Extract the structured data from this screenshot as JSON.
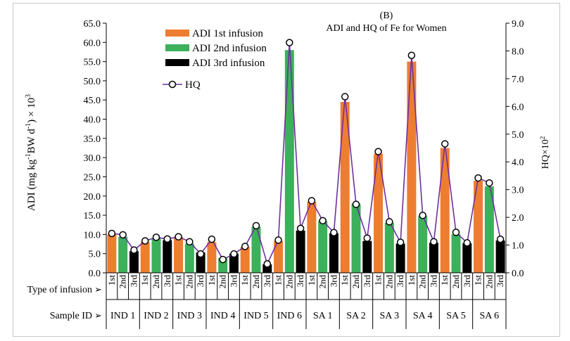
{
  "chart_data": {
    "type": "bar",
    "panel_label": "(B)",
    "title": "ADI and HQ of Fe for Women",
    "ylabel_parts": {
      "pre": "ADI (mg kg",
      "sup1": "-1",
      "mid": "BW d",
      "sup2": "-1",
      "post": ") × 10",
      "sup3": "3"
    },
    "y2label_parts": {
      "pre": "HQ×10",
      "sup": "2"
    },
    "ylim": [
      0,
      65
    ],
    "yticks": [
      "0.0",
      "5.0",
      "10.0",
      "15.0",
      "20.0",
      "25.0",
      "30.0",
      "35.0",
      "40.0",
      "45.0",
      "50.0",
      "55.0",
      "60.0",
      "65.0"
    ],
    "y2lim": [
      0,
      9
    ],
    "y2ticks": [
      "0.0",
      "1.0",
      "2.0",
      "3.0",
      "4.0",
      "5.0",
      "6.0",
      "7.0",
      "8.0",
      "9.0"
    ],
    "row_label_infusion": "Type of infusion",
    "row_label_sample": "Sample ID",
    "arrow_glyph": "➢",
    "infusion_types": [
      "1st",
      "2nd",
      "3rd"
    ],
    "samples": [
      "IND 1",
      "IND 2",
      "IND 3",
      "IND 4",
      "IND 5",
      "IND 6",
      "SA 1",
      "SA 2",
      "SA 3",
      "SA 4",
      "SA 5",
      "SA 6"
    ],
    "colors": {
      "1st": "#ED7D31",
      "2nd": "#3CB05A",
      "3rd": "#000000",
      "hq": "#7030A0"
    },
    "legend": {
      "placement": "top-left",
      "items": [
        "ADI 1st infusion",
        "ADI 2nd infusion",
        "ADI 3rd infusion",
        "HQ"
      ]
    },
    "series": [
      {
        "name": "ADI 1st infusion",
        "values": [
          10.0,
          8.0,
          9.4,
          8.0,
          6.7,
          8.3,
          18.5,
          44.5,
          31.0,
          55.0,
          32.5,
          24.0
        ]
      },
      {
        "name": "ADI 2nd infusion",
        "values": [
          9.4,
          9.0,
          7.6,
          3.8,
          12.0,
          58.0,
          13.5,
          18.0,
          13.0,
          14.8,
          10.0,
          22.5
        ]
      },
      {
        "name": "ADI 3rd infusion",
        "values": [
          5.6,
          8.5,
          5.3,
          5.0,
          2.2,
          11.0,
          10.3,
          8.3,
          7.6,
          7.8,
          7.7,
          8.4
        ]
      }
    ],
    "hq": [
      [
        1.42,
        1.37,
        0.82
      ],
      [
        1.15,
        1.28,
        1.22
      ],
      [
        1.3,
        1.12,
        0.68
      ],
      [
        1.21,
        0.48,
        0.68
      ],
      [
        0.95,
        1.7,
        0.32
      ],
      [
        1.18,
        8.3,
        1.6
      ],
      [
        2.6,
        1.88,
        1.45
      ],
      [
        6.35,
        2.47,
        1.25
      ],
      [
        4.37,
        1.84,
        1.1
      ],
      [
        7.84,
        2.07,
        1.12
      ],
      [
        4.65,
        1.46,
        1.08
      ],
      [
        3.42,
        3.24,
        1.21
      ]
    ]
  }
}
